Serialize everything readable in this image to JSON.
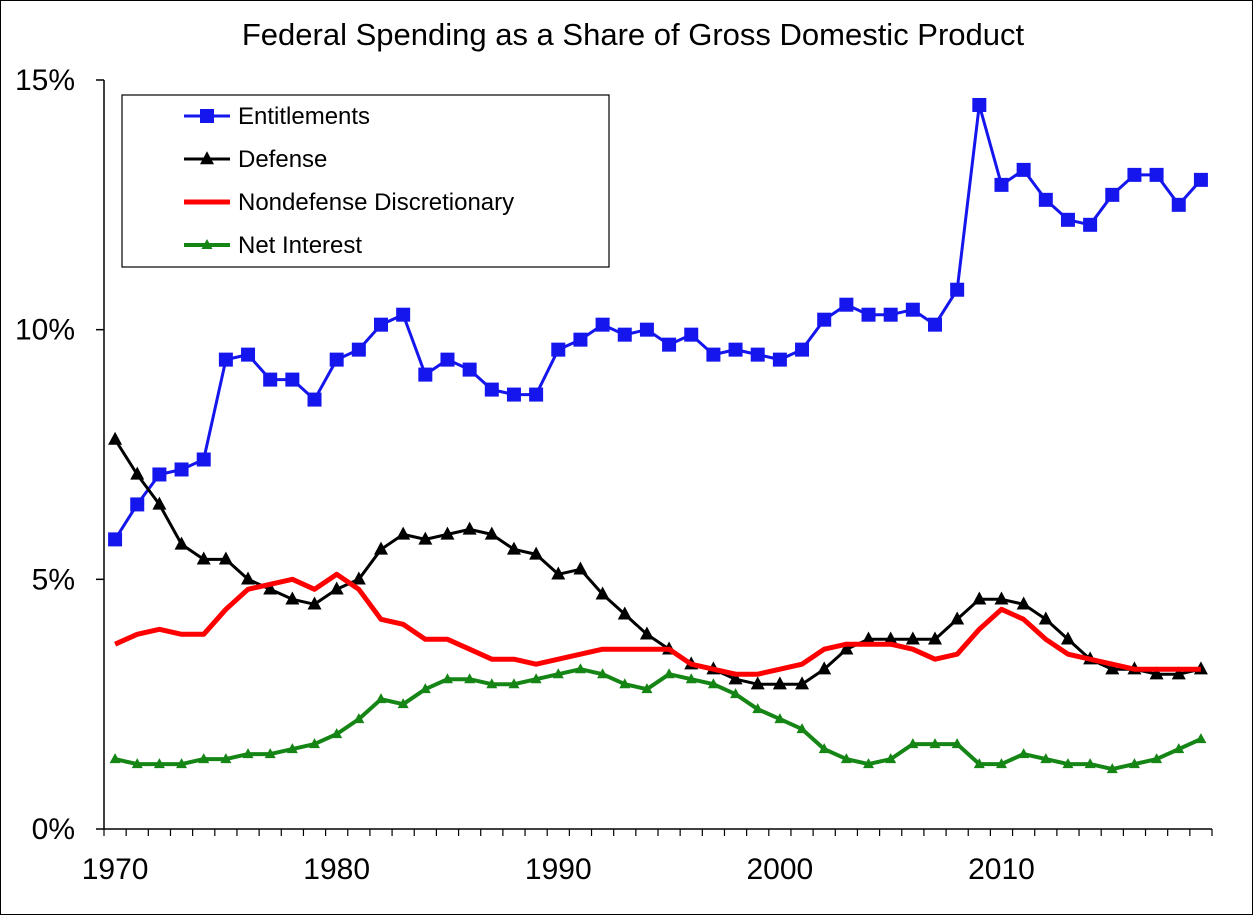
{
  "chart_data": {
    "type": "line",
    "title": "Federal Spending as a Share of Gross Domestic Product",
    "xlabel": "",
    "ylabel": "",
    "xlim": [
      1970,
      2019
    ],
    "ylim": [
      0,
      15
    ],
    "x_ticks": [
      1970,
      1980,
      1990,
      2000,
      2010
    ],
    "x_tick_labels": [
      "1970",
      "1980",
      "1990",
      "2000",
      "2010"
    ],
    "y_ticks": [
      0,
      5,
      10,
      15
    ],
    "y_tick_labels": [
      "0%",
      "5%",
      "10%",
      "15%"
    ],
    "grid": false,
    "legend_position": "top-left",
    "x": [
      1970,
      1971,
      1972,
      1973,
      1974,
      1975,
      1976,
      1977,
      1978,
      1979,
      1980,
      1981,
      1982,
      1983,
      1984,
      1985,
      1986,
      1987,
      1988,
      1989,
      1990,
      1991,
      1992,
      1993,
      1994,
      1995,
      1996,
      1997,
      1998,
      1999,
      2000,
      2001,
      2002,
      2003,
      2004,
      2005,
      2006,
      2007,
      2008,
      2009,
      2010,
      2011,
      2012,
      2013,
      2014,
      2015,
      2016,
      2017,
      2018,
      2019
    ],
    "series": [
      {
        "name": "Entitlements",
        "color": "#1515ee",
        "marker": "square",
        "values": [
          5.8,
          6.5,
          7.1,
          7.2,
          7.4,
          9.4,
          9.5,
          9.0,
          9.0,
          8.6,
          9.4,
          9.6,
          10.1,
          10.3,
          9.1,
          9.4,
          9.2,
          8.8,
          8.7,
          8.7,
          9.6,
          9.8,
          10.1,
          9.9,
          10.0,
          9.7,
          9.9,
          9.5,
          9.6,
          9.5,
          9.4,
          9.6,
          10.2,
          10.5,
          10.3,
          10.3,
          10.4,
          10.1,
          10.8,
          14.5,
          12.9,
          13.2,
          12.6,
          12.2,
          12.1,
          12.7,
          13.1,
          13.1,
          12.5,
          13.0
        ]
      },
      {
        "name": "Defense",
        "color": "#000000",
        "marker": "triangle",
        "values": [
          7.8,
          7.1,
          6.5,
          5.7,
          5.4,
          5.4,
          5.0,
          4.8,
          4.6,
          4.5,
          4.8,
          5.0,
          5.6,
          5.9,
          5.8,
          5.9,
          6.0,
          5.9,
          5.6,
          5.5,
          5.1,
          5.2,
          4.7,
          4.3,
          3.9,
          3.6,
          3.3,
          3.2,
          3.0,
          2.9,
          2.9,
          2.9,
          3.2,
          3.6,
          3.8,
          3.8,
          3.8,
          3.8,
          4.2,
          4.6,
          4.6,
          4.5,
          4.2,
          3.8,
          3.4,
          3.2,
          3.2,
          3.1,
          3.1,
          3.2
        ]
      },
      {
        "name": "Nondefense Discretionary",
        "color": "#ff0000",
        "marker": "none",
        "values": [
          3.7,
          3.9,
          4.0,
          3.9,
          3.9,
          4.4,
          4.8,
          4.9,
          5.0,
          4.8,
          5.1,
          4.8,
          4.2,
          4.1,
          3.8,
          3.8,
          3.6,
          3.4,
          3.4,
          3.3,
          3.4,
          3.5,
          3.6,
          3.6,
          3.6,
          3.6,
          3.3,
          3.2,
          3.1,
          3.1,
          3.2,
          3.3,
          3.6,
          3.7,
          3.7,
          3.7,
          3.6,
          3.4,
          3.5,
          4.0,
          4.4,
          4.2,
          3.8,
          3.5,
          3.4,
          3.3,
          3.2,
          3.2,
          3.2,
          3.2
        ]
      },
      {
        "name": "Net Interest",
        "color": "#158515",
        "marker": "small-triangle",
        "values": [
          1.4,
          1.3,
          1.3,
          1.3,
          1.4,
          1.4,
          1.5,
          1.5,
          1.6,
          1.7,
          1.9,
          2.2,
          2.6,
          2.5,
          2.8,
          3.0,
          3.0,
          2.9,
          2.9,
          3.0,
          3.1,
          3.2,
          3.1,
          2.9,
          2.8,
          3.1,
          3.0,
          2.9,
          2.7,
          2.4,
          2.2,
          2.0,
          1.6,
          1.4,
          1.3,
          1.4,
          1.7,
          1.7,
          1.7,
          1.3,
          1.3,
          1.5,
          1.4,
          1.3,
          1.3,
          1.2,
          1.3,
          1.4,
          1.6,
          1.8
        ]
      }
    ]
  }
}
